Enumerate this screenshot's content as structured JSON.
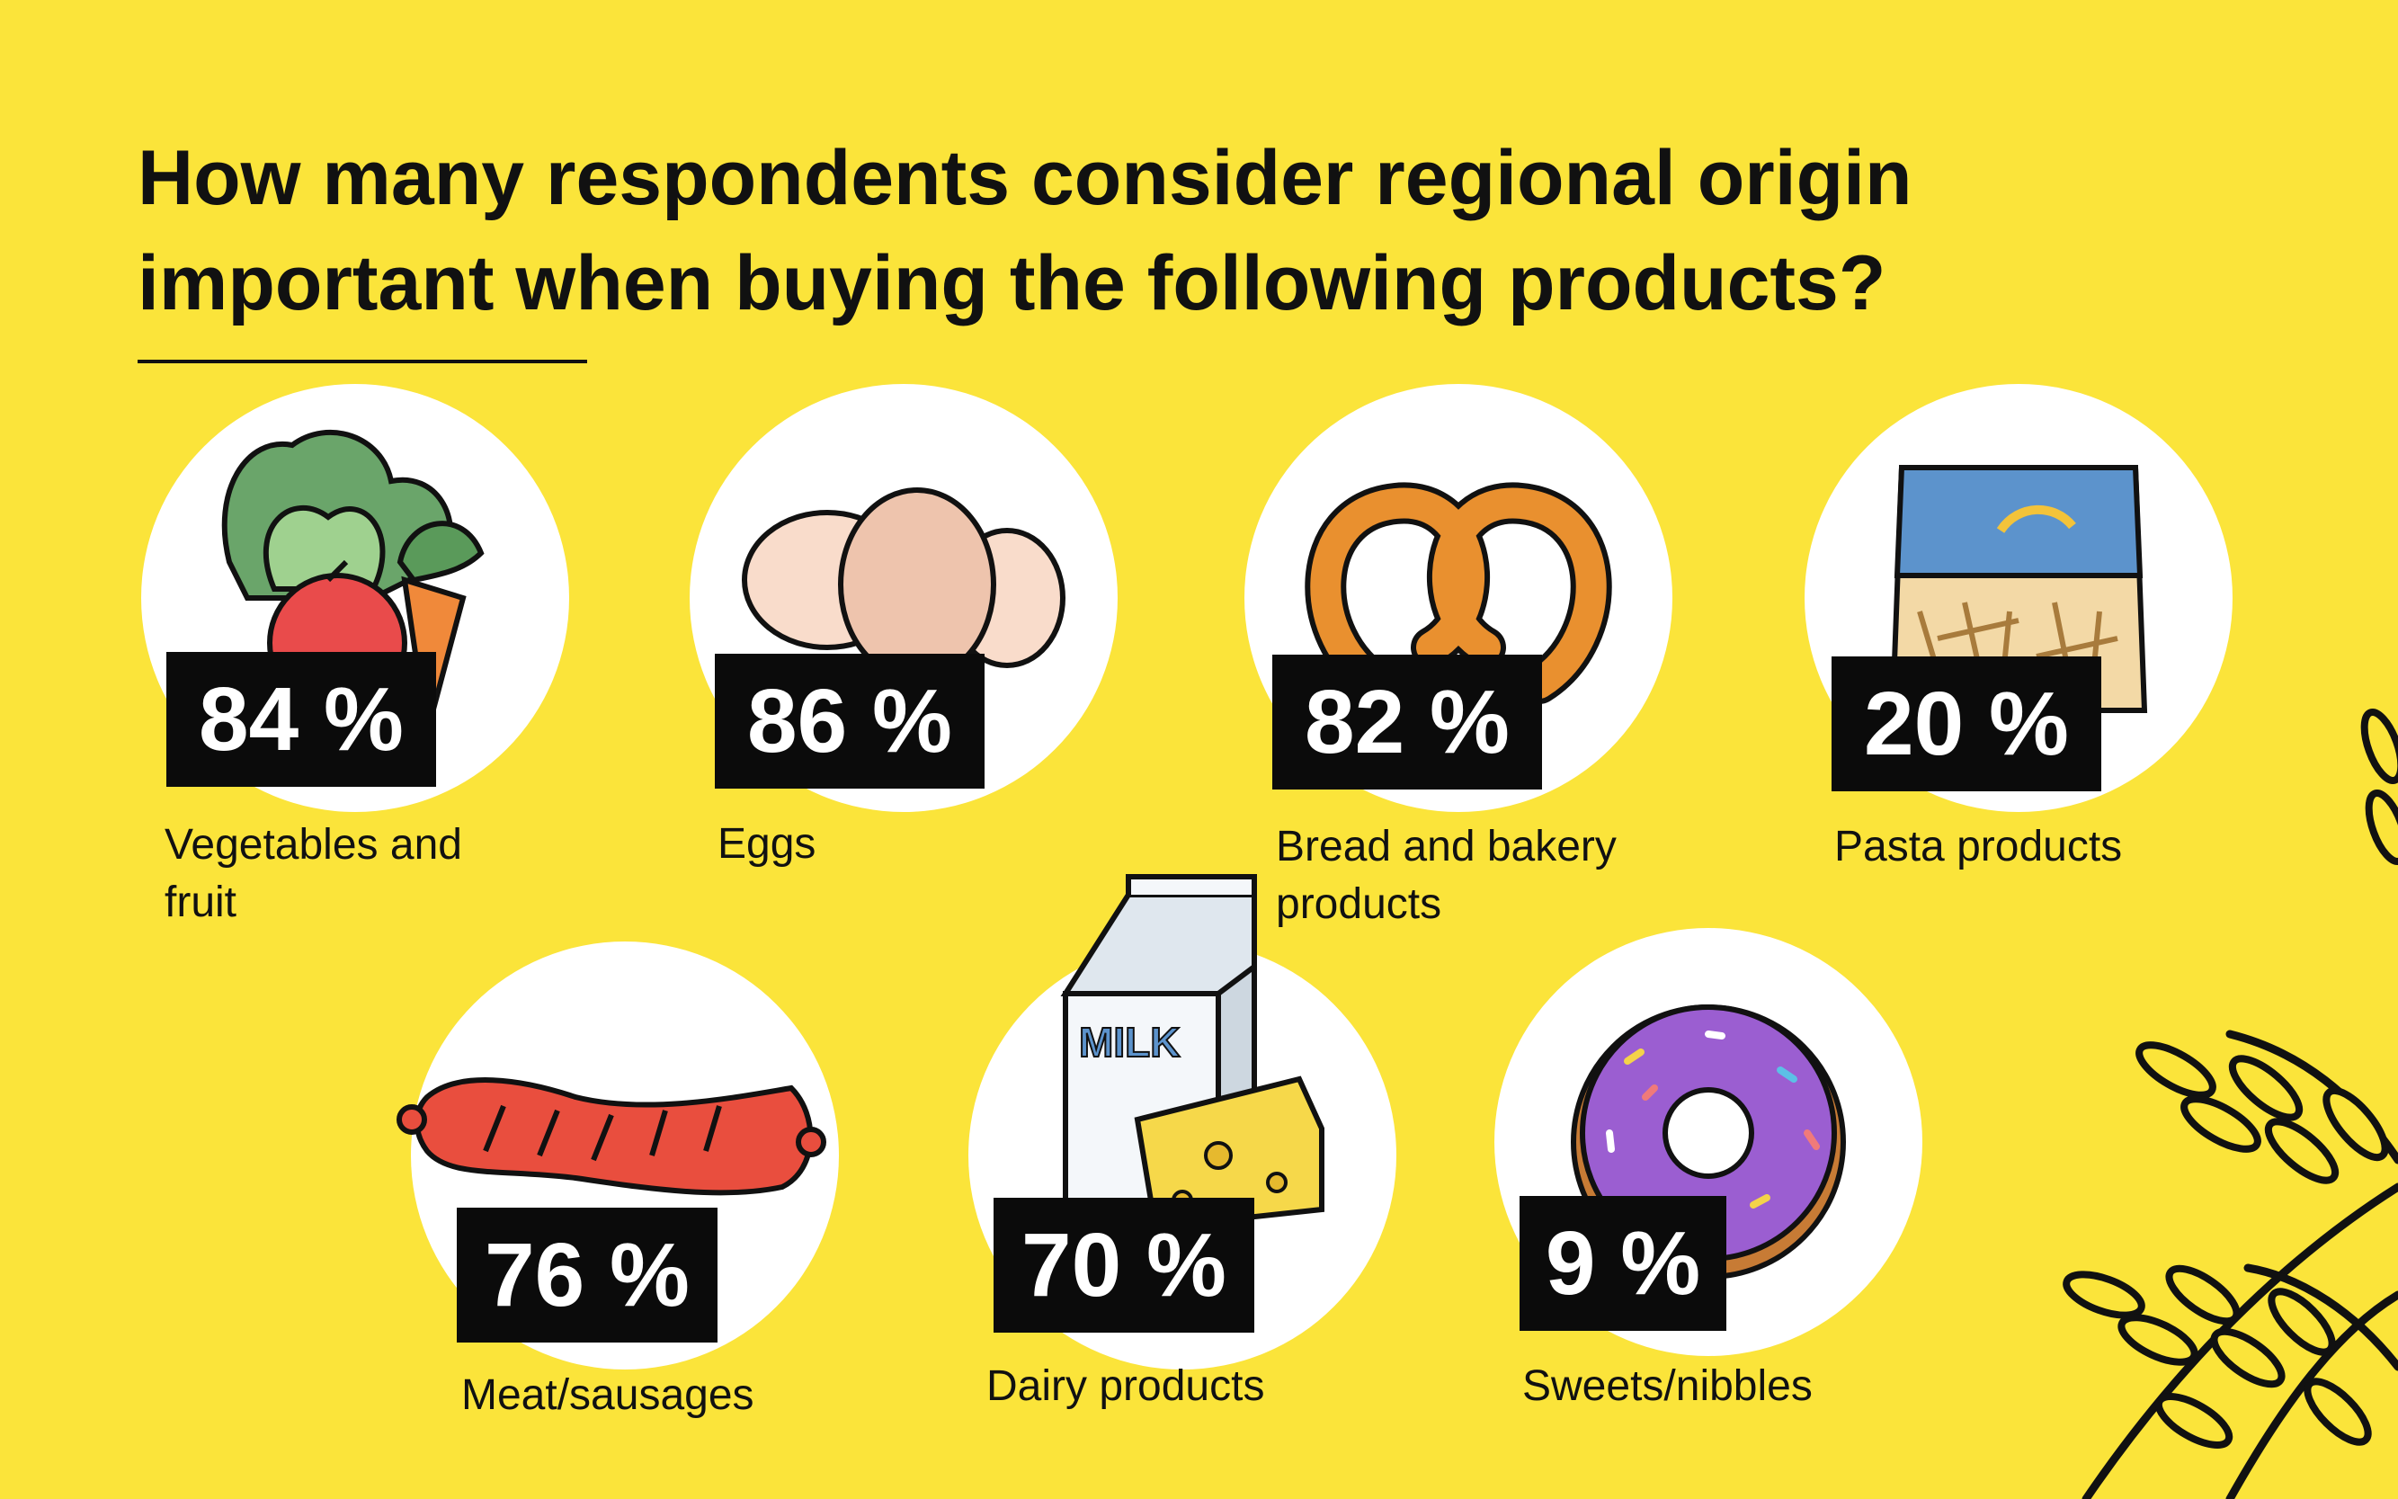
{
  "title": "How many respondents consider regional origin important when buying the following products?",
  "colors": {
    "background": "#fbe43a",
    "badge": "#0b0b0b",
    "circle": "#ffffff"
  },
  "items": [
    {
      "value": "84 %",
      "label": "Vegetables and fruit",
      "icon": "vegetables-icon"
    },
    {
      "value": "86 %",
      "label": "Eggs",
      "icon": "eggs-icon"
    },
    {
      "value": "82 %",
      "label": "Bread and bakery products",
      "icon": "pretzel-icon"
    },
    {
      "value": "20 %",
      "label": "Pasta products",
      "icon": "pasta-bag-icon"
    },
    {
      "value": "76 %",
      "label": "Meat/sausages",
      "icon": "sausage-icon"
    },
    {
      "value": "70 %",
      "label": "Dairy products",
      "icon": "milk-cheese-icon"
    },
    {
      "value": "9 %",
      "label": "Sweets/nibbles",
      "icon": "donut-icon"
    }
  ],
  "decoration": {
    "icon": "wheat-icon"
  }
}
